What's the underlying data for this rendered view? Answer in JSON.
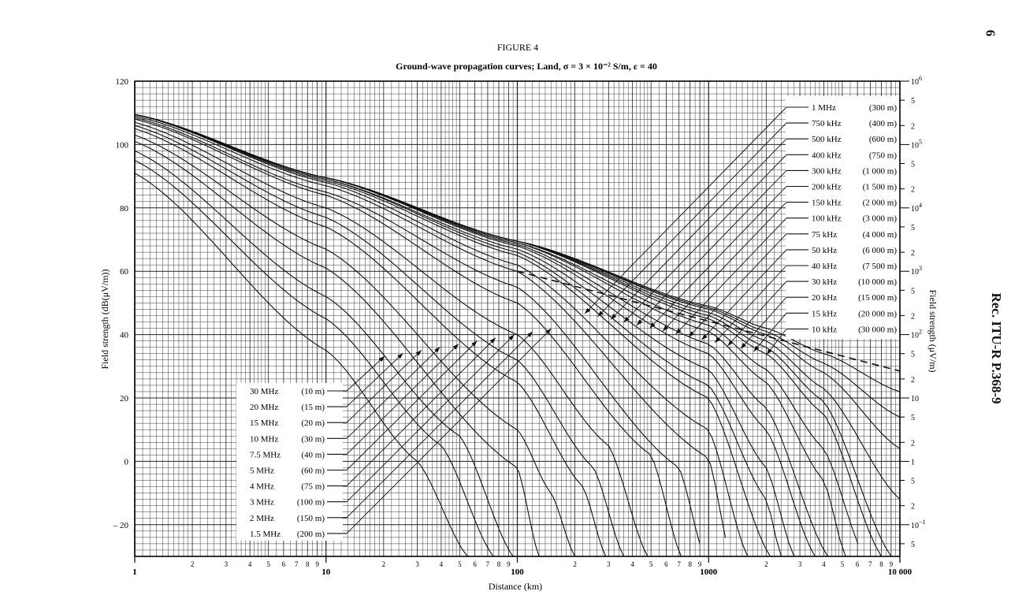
{
  "page": {
    "page_number": "6",
    "running_head": "Rec.  ITU-R  P.368-9"
  },
  "chart_data": {
    "type": "line",
    "figure_label": "FIGURE 4",
    "title": "Ground-wave propagation curves; Land, σ = 3 × 10⁻² S/m, ε = 40",
    "xlabel": "Distance (km)",
    "ylabel_left": "Field strength (dB(μV/m))",
    "ylabel_right": "Field strength (μV/m)",
    "x_scale": "log",
    "xlim": [
      1,
      10000
    ],
    "ylim": [
      -30,
      120
    ],
    "grid": true,
    "x_ticks_major": [
      "1",
      "10",
      "100",
      "1000",
      "10 000"
    ],
    "x_ticks_minor": [
      "2",
      "3",
      "4",
      "5",
      "6",
      "7",
      "8",
      "9"
    ],
    "y_ticks_left": [
      "120",
      "100",
      "80",
      "60",
      "40",
      "20",
      "0",
      "– 20"
    ],
    "y_ticks_right": [
      {
        "text": "10",
        "sup": "6",
        "db": 120
      },
      {
        "text": "5",
        "db": 114
      },
      {
        "text": "2",
        "db": 106
      },
      {
        "text": "10",
        "sup": "5",
        "db": 100
      },
      {
        "text": "5",
        "db": 94
      },
      {
        "text": "2",
        "db": 86
      },
      {
        "text": "10",
        "sup": "4",
        "db": 80
      },
      {
        "text": "5",
        "db": 74
      },
      {
        "text": "2",
        "db": 66
      },
      {
        "text": "10",
        "sup": "3",
        "db": 60
      },
      {
        "text": "5",
        "db": 54
      },
      {
        "text": "2",
        "db": 46
      },
      {
        "text": "10",
        "sup": "2",
        "db": 40
      },
      {
        "text": "5",
        "db": 34
      },
      {
        "text": "2",
        "db": 26
      },
      {
        "text": "10",
        "db": 20
      },
      {
        "text": "5",
        "db": 14
      },
      {
        "text": "2",
        "db": 6
      },
      {
        "text": "1",
        "db": 0
      },
      {
        "text": "5",
        "db": -6
      },
      {
        "text": "2",
        "db": -14
      },
      {
        "text": "10",
        "sup": "−1",
        "db": -20
      },
      {
        "text": "5",
        "db": -26
      }
    ],
    "inverse_distance_line": [
      [
        100,
        60
      ],
      [
        10000,
        28.5
      ]
    ],
    "legend_upper": [
      {
        "freq": "1 MHz",
        "wavelength": "(300 m)"
      },
      {
        "freq": "750  kHz",
        "wavelength": "(400 m)"
      },
      {
        "freq": "500  kHz",
        "wavelength": "(600 m)"
      },
      {
        "freq": "400  kHz",
        "wavelength": "(750 m)"
      },
      {
        "freq": "300  kHz",
        "wavelength": "(1 000 m)"
      },
      {
        "freq": "200  kHz",
        "wavelength": "(1 500 m)"
      },
      {
        "freq": "150  kHz",
        "wavelength": "(2 000 m)"
      },
      {
        "freq": "100  kHz",
        "wavelength": "(3 000 m)"
      },
      {
        "freq": "75  kHz",
        "wavelength": "(4 000 m)"
      },
      {
        "freq": "50  kHz",
        "wavelength": "(6 000 m)"
      },
      {
        "freq": "40  kHz",
        "wavelength": "(7 500 m)"
      },
      {
        "freq": "30  kHz",
        "wavelength": "(10 000 m)"
      },
      {
        "freq": "20  kHz",
        "wavelength": "(15 000 m)"
      },
      {
        "freq": "15  kHz",
        "wavelength": "(20 000 m)"
      },
      {
        "freq": "10  kHz",
        "wavelength": "(30 000 m)"
      }
    ],
    "legend_lower": [
      {
        "freq": "30  MHz",
        "wavelength": "(10 m)"
      },
      {
        "freq": "20  MHz",
        "wavelength": "(15 m)"
      },
      {
        "freq": "15  MHz",
        "wavelength": "(20 m)"
      },
      {
        "freq": "10  MHz",
        "wavelength": "(30 m)"
      },
      {
        "freq": "7.5 MHz",
        "wavelength": "(40 m)"
      },
      {
        "freq": "5  MHz",
        "wavelength": "(60 m)"
      },
      {
        "freq": "4  MHz",
        "wavelength": "(75 m)"
      },
      {
        "freq": "3  MHz",
        "wavelength": "(100 m)"
      },
      {
        "freq": "2  MHz",
        "wavelength": "(150 m)"
      },
      {
        "freq": "1.5 MHz",
        "wavelength": "(200 m)"
      }
    ],
    "series": [
      {
        "name": "10  kHz",
        "values": [
          [
            1,
            109.5
          ],
          [
            10,
            89.5
          ],
          [
            100,
            69.5
          ],
          [
            1000,
            49
          ],
          [
            2000,
            42
          ],
          [
            4000,
            34
          ],
          [
            10000,
            22
          ]
        ]
      },
      {
        "name": "15  kHz",
        "values": [
          [
            1,
            109.5
          ],
          [
            10,
            89.5
          ],
          [
            100,
            69.5
          ],
          [
            1000,
            48.5
          ],
          [
            2000,
            41
          ],
          [
            4000,
            31
          ],
          [
            10000,
            14
          ]
        ]
      },
      {
        "name": "20  kHz",
        "values": [
          [
            1,
            109.5
          ],
          [
            10,
            89.5
          ],
          [
            100,
            69.5
          ],
          [
            1000,
            48
          ],
          [
            2000,
            40
          ],
          [
            4000,
            28
          ],
          [
            10000,
            4
          ]
        ]
      },
      {
        "name": "30  kHz",
        "values": [
          [
            1,
            109.5
          ],
          [
            10,
            89.5
          ],
          [
            100,
            69.5
          ],
          [
            1000,
            47
          ],
          [
            2000,
            38
          ],
          [
            4000,
            23
          ],
          [
            10000,
            -12
          ]
        ]
      },
      {
        "name": "40  kHz",
        "values": [
          [
            1,
            109.5
          ],
          [
            10,
            89.5
          ],
          [
            100,
            69.5
          ],
          [
            1000,
            46
          ],
          [
            2000,
            36
          ],
          [
            4000,
            19
          ],
          [
            9000,
            -30
          ]
        ]
      },
      {
        "name": "50  kHz",
        "values": [
          [
            1,
            109.5
          ],
          [
            10,
            89.5
          ],
          [
            100,
            69.5
          ],
          [
            1000,
            45
          ],
          [
            2000,
            34
          ],
          [
            4000,
            15
          ],
          [
            8000,
            -30
          ]
        ]
      },
      {
        "name": "75  kHz",
        "values": [
          [
            1,
            109.5
          ],
          [
            10,
            89.5
          ],
          [
            100,
            69
          ],
          [
            1000,
            43
          ],
          [
            2000,
            29
          ],
          [
            4000,
            4
          ],
          [
            6500,
            -30
          ]
        ]
      },
      {
        "name": "100  kHz",
        "values": [
          [
            1,
            109.5
          ],
          [
            10,
            89.5
          ],
          [
            100,
            69
          ],
          [
            1000,
            41
          ],
          [
            2000,
            25
          ],
          [
            4000,
            -6
          ],
          [
            5200,
            -30
          ]
        ]
      },
      {
        "name": "150  kHz",
        "values": [
          [
            1,
            109.5
          ],
          [
            10,
            89.5
          ],
          [
            100,
            68.5
          ],
          [
            1000,
            37
          ],
          [
            2000,
            17
          ],
          [
            4200,
            -30
          ]
        ]
      },
      {
        "name": "200  kHz",
        "values": [
          [
            1,
            109.5
          ],
          [
            10,
            89.5
          ],
          [
            100,
            68
          ],
          [
            1000,
            34
          ],
          [
            2000,
            10
          ],
          [
            3600,
            -30
          ]
        ]
      },
      {
        "name": "300  kHz",
        "values": [
          [
            1,
            109.5
          ],
          [
            10,
            89
          ],
          [
            100,
            67
          ],
          [
            1000,
            29
          ],
          [
            2000,
            -2
          ],
          [
            2800,
            -30
          ]
        ]
      },
      {
        "name": "400  kHz",
        "values": [
          [
            1,
            109.5
          ],
          [
            10,
            89
          ],
          [
            100,
            66
          ],
          [
            1000,
            24
          ],
          [
            2000,
            -12
          ],
          [
            2400,
            -30
          ]
        ]
      },
      {
        "name": "500  kHz",
        "values": [
          [
            1,
            109.5
          ],
          [
            10,
            88.5
          ],
          [
            100,
            65
          ],
          [
            1000,
            20
          ],
          [
            2100,
            -30
          ]
        ]
      },
      {
        "name": "750  kHz",
        "values": [
          [
            1,
            109.5
          ],
          [
            10,
            88
          ],
          [
            100,
            62
          ],
          [
            1000,
            10
          ],
          [
            1600,
            -30
          ]
        ]
      },
      {
        "name": "1 MHz",
        "values": [
          [
            1,
            109
          ],
          [
            10,
            87
          ],
          [
            100,
            60
          ],
          [
            1000,
            1
          ],
          [
            1300,
            -30
          ]
        ]
      },
      {
        "name": "1.5 MHz",
        "values": [
          [
            1,
            108.5
          ],
          [
            10,
            85
          ],
          [
            100,
            55
          ],
          [
            700,
            -2
          ],
          [
            950,
            -30
          ]
        ]
      },
      {
        "name": "2  MHz",
        "values": [
          [
            1,
            108
          ],
          [
            10,
            84
          ],
          [
            100,
            50
          ],
          [
            500,
            2
          ],
          [
            720,
            -30
          ]
        ]
      },
      {
        "name": "3  MHz",
        "values": [
          [
            1,
            107
          ],
          [
            10,
            80
          ],
          [
            100,
            40
          ],
          [
            300,
            5
          ],
          [
            480,
            -30
          ]
        ]
      },
      {
        "name": "4  MHz",
        "values": [
          [
            1,
            106
          ],
          [
            10,
            77
          ],
          [
            100,
            32
          ],
          [
            250,
            -2
          ],
          [
            360,
            -30
          ]
        ]
      },
      {
        "name": "5  MHz",
        "values": [
          [
            1,
            105
          ],
          [
            10,
            74
          ],
          [
            100,
            25
          ],
          [
            220,
            -8
          ],
          [
            290,
            -30
          ]
        ]
      },
      {
        "name": "7.5 MHz",
        "values": [
          [
            1,
            103
          ],
          [
            10,
            67
          ],
          [
            100,
            10
          ],
          [
            150,
            -10
          ],
          [
            200,
            -30
          ]
        ]
      },
      {
        "name": "10  MHz",
        "values": [
          [
            1,
            101
          ],
          [
            10,
            61
          ],
          [
            100,
            -2
          ],
          [
            130,
            -30
          ]
        ]
      },
      {
        "name": "15  MHz",
        "values": [
          [
            1,
            98
          ],
          [
            10,
            52
          ],
          [
            50,
            8
          ],
          [
            95,
            -30
          ]
        ]
      },
      {
        "name": "20  MHz",
        "values": [
          [
            1,
            95
          ],
          [
            10,
            45
          ],
          [
            40,
            5
          ],
          [
            75,
            -30
          ]
        ]
      },
      {
        "name": "30  MHz",
        "values": [
          [
            1,
            91
          ],
          [
            10,
            35
          ],
          [
            30,
            0
          ],
          [
            55,
            -30
          ]
        ]
      }
    ]
  }
}
